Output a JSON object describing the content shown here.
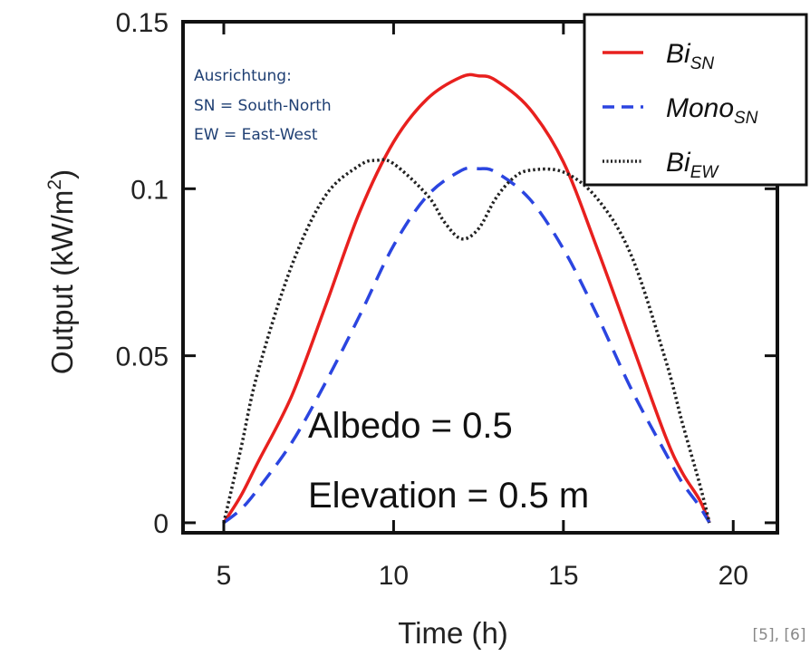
{
  "chart_data": {
    "type": "line",
    "xlabel": "Time (h)",
    "ylabel_main": "Output (kW/m",
    "ylabel_sup": "2",
    "ylabel_close": ")",
    "xlim": [
      3.8,
      21.3
    ],
    "ylim": [
      -0.003,
      0.15
    ],
    "x_ticks": [
      5,
      10,
      15,
      20
    ],
    "x_tick_labels": [
      "5",
      "10",
      "15",
      "20"
    ],
    "y_ticks": [
      0,
      0.05,
      0.1,
      0.15
    ],
    "y_tick_labels": [
      "0",
      "0.05",
      "0.1",
      "0.15"
    ],
    "grid": false,
    "legend_position": "top-right",
    "annotations": {
      "albedo": "Albedo = 0.5",
      "elevation": "Elevation = 0.5 m",
      "note_title": "Ausrichtung:",
      "note_sn": "SN = South-North",
      "note_ew": "EW = East-West",
      "citation": "[5], [6]"
    },
    "series": [
      {
        "base": "Bi",
        "sub": "SN",
        "color": "#e8201e",
        "dash": "solid",
        "x": [
          5,
          5.5,
          6,
          7,
          8,
          9,
          10,
          11,
          12,
          12.5,
          13,
          14,
          15,
          16,
          17,
          18,
          18.5,
          19,
          19.3
        ],
        "y": [
          0,
          0.008,
          0.018,
          0.038,
          0.065,
          0.093,
          0.114,
          0.127,
          0.1335,
          0.1338,
          0.1325,
          0.124,
          0.108,
          0.082,
          0.054,
          0.026,
          0.015,
          0.007,
          0
        ]
      },
      {
        "base": "Mono",
        "sub": "SN",
        "color": "#2b45e0",
        "dash": "dashed",
        "x": [
          5,
          5.5,
          6,
          7,
          8,
          9,
          10,
          11,
          12,
          12.5,
          13,
          14,
          15,
          16,
          17,
          18,
          18.5,
          19,
          19.3
        ],
        "y": [
          0,
          0.004,
          0.01,
          0.024,
          0.042,
          0.062,
          0.083,
          0.098,
          0.1055,
          0.106,
          0.105,
          0.097,
          0.082,
          0.062,
          0.04,
          0.021,
          0.012,
          0.005,
          0
        ]
      },
      {
        "base": "Bi",
        "sub": "EW",
        "color": "#222222",
        "dash": "dotted",
        "x": [
          5,
          5.5,
          6,
          7,
          8,
          9,
          9.5,
          10,
          11,
          11.5,
          12,
          12.5,
          13,
          13.5,
          14,
          15,
          16,
          17,
          18,
          18.5,
          19,
          19.3
        ],
        "y": [
          0,
          0.022,
          0.045,
          0.077,
          0.098,
          0.107,
          0.1085,
          0.1075,
          0.098,
          0.09,
          0.085,
          0.088,
          0.097,
          0.103,
          0.1055,
          0.105,
          0.097,
          0.08,
          0.049,
          0.03,
          0.012,
          0
        ]
      }
    ]
  }
}
